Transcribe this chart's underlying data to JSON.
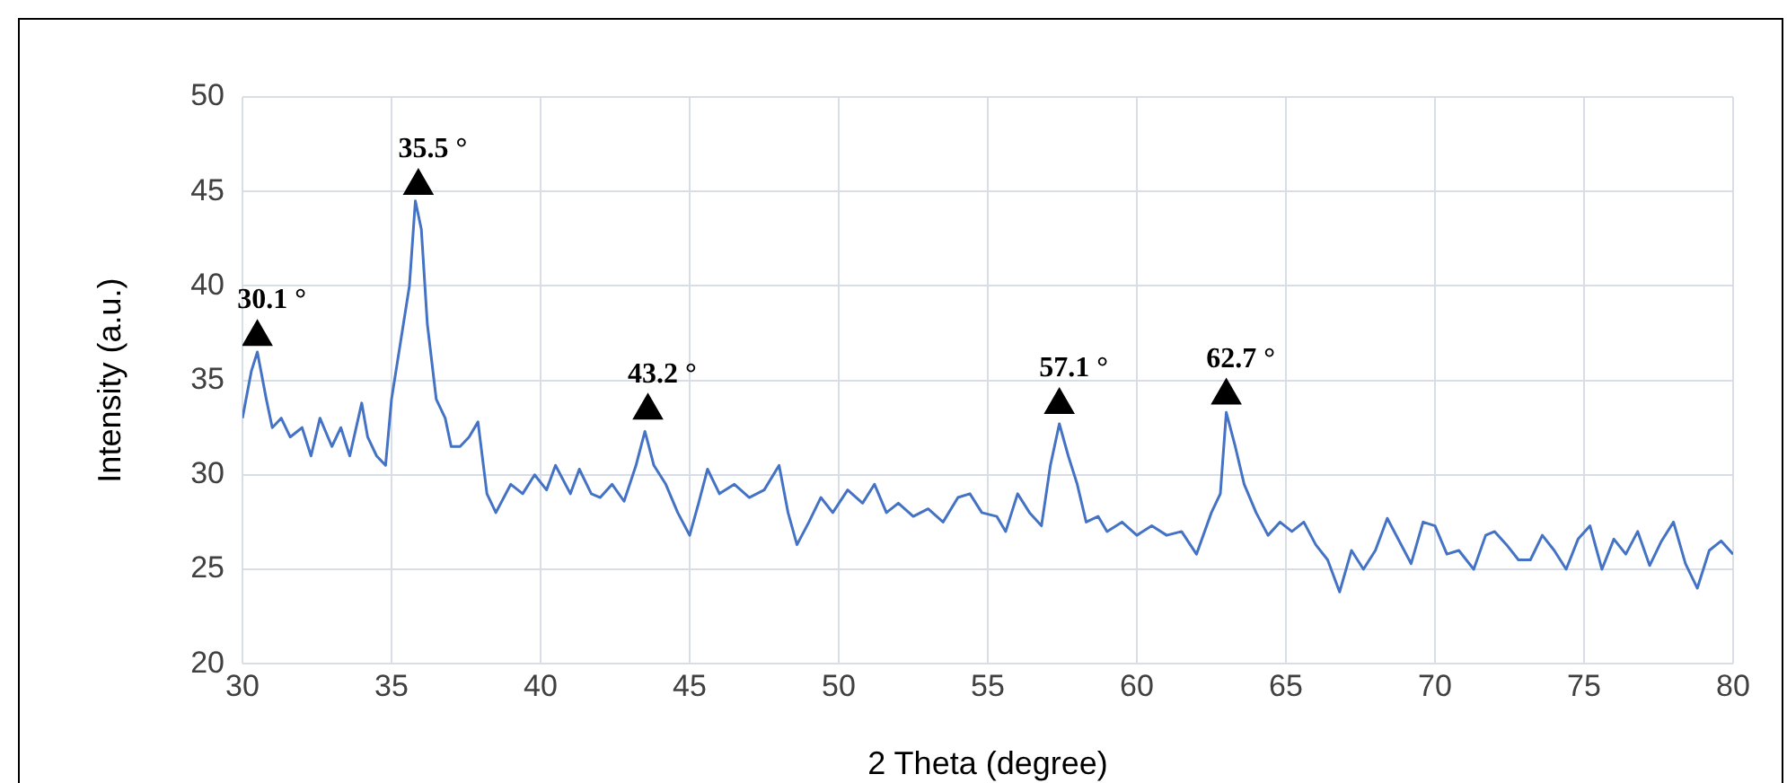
{
  "chart_data": {
    "type": "line",
    "xlabel": "2 Theta (degree)",
    "ylabel": "Intensity (a.u.)",
    "xlim": [
      30,
      80
    ],
    "xticks": [
      30,
      35,
      40,
      45,
      50,
      55,
      60,
      65,
      70,
      75,
      80
    ],
    "ylim": [
      20,
      50
    ],
    "yticks": [
      20,
      25,
      30,
      35,
      40,
      45,
      50
    ],
    "grid": true,
    "legend": false,
    "series": [
      {
        "color": "#4472c4",
        "marker": "none",
        "x": [
          30,
          30.3,
          30.5,
          30.8,
          31,
          31.3,
          31.6,
          32,
          32.3,
          32.6,
          33,
          33.3,
          33.6,
          34,
          34.2,
          34.5,
          34.8,
          35,
          35.3,
          35.6,
          35.8,
          36,
          36.2,
          36.5,
          36.8,
          37,
          37.3,
          37.6,
          37.9,
          38.2,
          38.5,
          39,
          39.4,
          39.8,
          40.2,
          40.5,
          41,
          41.3,
          41.7,
          42,
          42.4,
          42.8,
          43.2,
          43.5,
          43.8,
          44.2,
          44.6,
          45,
          45.3,
          45.6,
          46,
          46.5,
          47,
          47.5,
          48,
          48.3,
          48.6,
          49,
          49.4,
          49.8,
          50.3,
          50.8,
          51.2,
          51.6,
          52,
          52.5,
          53,
          53.5,
          54,
          54.4,
          54.8,
          55.3,
          55.6,
          56,
          56.4,
          56.8,
          57.1,
          57.4,
          57.7,
          58,
          58.3,
          58.7,
          59,
          59.5,
          60,
          60.5,
          61,
          61.5,
          62,
          62.5,
          62.8,
          63,
          63.3,
          63.6,
          64,
          64.4,
          64.8,
          65.2,
          65.6,
          66,
          66.4,
          66.8,
          67.2,
          67.6,
          68,
          68.4,
          68.8,
          69.2,
          69.6,
          70,
          70.4,
          70.8,
          71.3,
          71.7,
          72,
          72.4,
          72.8,
          73.2,
          73.6,
          74,
          74.4,
          74.8,
          75.2,
          75.6,
          76,
          76.4,
          76.8,
          77.2,
          77.6,
          78,
          78.4,
          78.8,
          79.2,
          79.6,
          80
        ],
        "values": [
          33,
          35.5,
          36.5,
          34,
          32.5,
          33,
          32,
          32.5,
          31,
          33,
          31.5,
          32.5,
          31,
          33.8,
          32,
          31,
          30.5,
          34,
          37,
          40,
          44.5,
          43,
          38,
          34,
          33,
          31.5,
          31.5,
          32,
          32.8,
          29,
          28,
          29.5,
          29,
          30,
          29.2,
          30.5,
          29,
          30.3,
          29,
          28.8,
          29.5,
          28.6,
          30.5,
          32.3,
          30.5,
          29.5,
          28,
          26.8,
          28.5,
          30.3,
          29,
          29.5,
          28.8,
          29.2,
          30.5,
          28,
          26.3,
          27.5,
          28.8,
          28,
          29.2,
          28.5,
          29.5,
          28,
          28.5,
          27.8,
          28.2,
          27.5,
          28.8,
          29,
          28,
          27.8,
          27,
          29,
          28,
          27.3,
          30.5,
          32.7,
          31,
          29.5,
          27.5,
          27.8,
          27,
          27.5,
          26.8,
          27.3,
          26.8,
          27,
          25.8,
          28,
          29,
          33.3,
          31.5,
          29.5,
          28,
          26.8,
          27.5,
          27,
          27.5,
          26.3,
          25.5,
          23.8,
          26,
          25,
          26,
          27.7,
          26.5,
          25.3,
          27.5,
          27.3,
          25.8,
          26,
          25,
          26.8,
          27,
          26.3,
          25.5,
          25.5,
          26.8,
          26,
          25,
          26.6,
          27.3,
          25,
          26.6,
          25.8,
          27,
          25.2,
          26.5,
          27.5,
          25.3,
          24,
          26,
          26.5,
          25.8
        ]
      },
      {
        "type": "scatter",
        "color": "#000000",
        "marker": "triangle",
        "x": [
          30.5,
          35.9,
          43.6,
          57.4,
          63
        ],
        "values": [
          37.3,
          45.3,
          33.4,
          33.7,
          34.2
        ]
      }
    ],
    "annotations": [
      {
        "text": "30.1 °",
        "x": 30.5,
        "y": 37.3
      },
      {
        "text": "35.5 °",
        "x": 35.9,
        "y": 45.3
      },
      {
        "text": "43.2 °",
        "x": 43.6,
        "y": 33.4
      },
      {
        "text": "57.1 °",
        "x": 57.4,
        "y": 33.7
      },
      {
        "text": "62.7 °",
        "x": 63,
        "y": 34.2
      }
    ]
  }
}
